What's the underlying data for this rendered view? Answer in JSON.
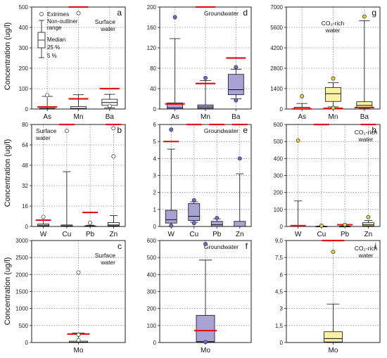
{
  "ylabel": "Concentration (ug/l)",
  "colors": {
    "surface": "#ffffff",
    "ground": "#a9a2d4",
    "co2": "#f8f1a6",
    "guideline": "#e0141c",
    "extreme_ground": "#6a6ad0",
    "extreme_co2": "#d9d247",
    "axis": "#222222",
    "grid": "#8a8a8a"
  },
  "legend": {
    "extremes": "Extrimes",
    "range_1": "Non-outliner",
    "range_2": "range",
    "median": "Median",
    "p25": "25 %",
    "p5": "5 %"
  },
  "chart_data": [
    {
      "id": "a",
      "type": "box",
      "letter": "a",
      "annotation": [
        "Surface",
        "water"
      ],
      "group": "surface",
      "ylim": [
        0,
        500
      ],
      "yticks": [
        0,
        100,
        200,
        300,
        400,
        500
      ],
      "tick_labels": [
        "0",
        "100",
        "200",
        "300",
        "400",
        "500"
      ],
      "categories": [
        "As",
        "Mn",
        "Ba"
      ],
      "boxes": [
        {
          "min": 0,
          "q1": 0.5,
          "median": 1.5,
          "q3": 3,
          "max": 62,
          "outliers": [
            68
          ],
          "guideline": 10
        },
        {
          "min": 0,
          "q1": 0,
          "median": 3,
          "q3": 12,
          "max": 70,
          "outliers": [
            470
          ],
          "guideline": 50,
          "guideline_top": 500
        },
        {
          "min": 5,
          "q1": 18,
          "median": 32,
          "q3": 48,
          "max": 72,
          "outliers": [
            15
          ],
          "guideline": 100
        }
      ]
    },
    {
      "id": "d",
      "type": "box",
      "letter": "d",
      "annotation": [
        "Groundwater"
      ],
      "group": "ground",
      "ylim": [
        0,
        200
      ],
      "yticks": [
        0,
        40,
        80,
        120,
        160,
        200
      ],
      "tick_labels": [
        "0",
        "40",
        "80",
        "120",
        "160",
        "200"
      ],
      "categories": [
        "As",
        "Mn",
        "Ba"
      ],
      "boxes": [
        {
          "min": 0,
          "q1": 0,
          "median": 2,
          "q3": 12,
          "max": 138,
          "outliers": [
            180
          ],
          "guideline": 10
        },
        {
          "min": 0,
          "q1": 1,
          "median": 4,
          "q3": 8,
          "max": 56,
          "outliers": [
            61
          ],
          "guideline": 50,
          "guideline_top": 200
        },
        {
          "min": 20,
          "q1": 28,
          "median": 38,
          "q3": 68,
          "max": 78,
          "outliers": [
            82,
            17
          ],
          "guideline": 100
        }
      ]
    },
    {
      "id": "g",
      "type": "box",
      "letter": "g",
      "annotation": [
        "CO₂-rich",
        "water"
      ],
      "group": "co2",
      "ylim": [
        0,
        7000
      ],
      "yticks": [
        0,
        1400,
        2800,
        4200,
        5600,
        7000
      ],
      "tick_labels": [
        "0",
        "1400",
        "2800",
        "4200",
        "5600",
        "7000"
      ],
      "categories": [
        "As",
        "Mn",
        "Ba"
      ],
      "boxes": [
        {
          "min": 0,
          "q1": 10,
          "median": 50,
          "q3": 120,
          "max": 380,
          "outliers": [
            880
          ],
          "guideline": 10
        },
        {
          "min": 150,
          "q1": 520,
          "median": 1050,
          "q3": 1480,
          "max": 1800,
          "outliers": [
            2100,
            80
          ],
          "guideline": 50
        },
        {
          "min": 20,
          "q1": 80,
          "median": 250,
          "q3": 500,
          "max": 6050,
          "outliers": [
            6350
          ],
          "guideline": 100
        }
      ]
    },
    {
      "id": "b",
      "type": "box",
      "letter": "b",
      "annotation": [
        "Surface",
        "water"
      ],
      "group": "surface",
      "ylim": [
        0,
        80
      ],
      "yticks": [
        0,
        16,
        32,
        48,
        64,
        80
      ],
      "tick_labels": [
        "0",
        "16",
        "32",
        "48",
        "64",
        "80"
      ],
      "categories": [
        "W",
        "Cu",
        "Pb",
        "Zn"
      ],
      "boxes": [
        {
          "min": 0,
          "q1": 0.3,
          "median": 1,
          "q3": 2,
          "max": 5,
          "outliers": [
            7.5
          ],
          "guideline": 5
        },
        {
          "min": 0,
          "q1": 0.2,
          "median": 0.5,
          "q3": 1.2,
          "max": 43,
          "outliers": [
            75
          ],
          "guideline": 2000,
          "guideline_top": 80
        },
        {
          "min": 0,
          "q1": 0,
          "median": 0.2,
          "q3": 0.5,
          "max": 1,
          "outliers": [
            3
          ],
          "guideline": 11
        },
        {
          "min": 0,
          "q1": 0.5,
          "median": 1.2,
          "q3": 3,
          "max": 8.5,
          "outliers": [
            77,
            55
          ],
          "guideline": 3000,
          "guideline_top": 80
        }
      ]
    },
    {
      "id": "e",
      "type": "box",
      "letter": "e",
      "annotation": [
        "Groundwater"
      ],
      "group": "ground",
      "ylim": [
        0,
        6
      ],
      "yticks": [
        0,
        1,
        2,
        3,
        4,
        5,
        6
      ],
      "tick_labels": [
        "0",
        "1",
        "2",
        "3",
        "4",
        "5",
        "6"
      ],
      "categories": [
        "W",
        "Cu",
        "Pb",
        "Zn"
      ],
      "boxes": [
        {
          "min": 0,
          "q1": 0.2,
          "median": 0.4,
          "q3": 0.95,
          "max": 4.55,
          "outliers": [
            5.7,
            0.05
          ],
          "guideline": 5
        },
        {
          "min": 0.25,
          "q1": 0.35,
          "median": 0.6,
          "q3": 1.35,
          "max": 1.45,
          "outliers": [
            1.55,
            0.2
          ],
          "guideline": 2000,
          "guideline_top": 6
        },
        {
          "min": 0,
          "q1": 0,
          "median": 0.1,
          "q3": 0.3,
          "max": 0.45,
          "outliers": [
            0.5
          ],
          "guideline": 10,
          "guideline_top": 6
        },
        {
          "min": 0,
          "q1": 0,
          "median": 0,
          "q3": 0.3,
          "max": 3.1,
          "outliers": [
            4
          ],
          "guideline": 3000,
          "guideline_top": 6
        }
      ]
    },
    {
      "id": "h",
      "type": "box",
      "letter": "h",
      "annotation": [
        "CO₂-rich",
        "water"
      ],
      "group": "co2",
      "ylim": [
        0,
        600
      ],
      "yticks": [
        0,
        100,
        200,
        300,
        400,
        500,
        600
      ],
      "tick_labels": [
        "0",
        "100",
        "200",
        "300",
        "400",
        "500",
        "600"
      ],
      "categories": [
        "W",
        "Cu",
        "Pb",
        "Zn"
      ],
      "boxes": [
        {
          "min": 0,
          "q1": 0,
          "median": 1,
          "q3": 3,
          "max": 150,
          "outliers": [
            505
          ],
          "guideline": 5
        },
        {
          "min": 0,
          "q1": 0,
          "median": 0.5,
          "q3": 1,
          "max": 3,
          "outliers": [
            5
          ],
          "guideline": 2000,
          "guideline_top": 600
        },
        {
          "min": 0,
          "q1": 0,
          "median": 0.5,
          "q3": 1,
          "max": 3,
          "outliers": [
            10
          ],
          "guideline": 10
        },
        {
          "min": 0,
          "q1": 3,
          "median": 10,
          "q3": 22,
          "max": 35,
          "outliers": [
            55
          ],
          "guideline": 3000,
          "guideline_top": 600
        }
      ]
    },
    {
      "id": "c",
      "type": "box",
      "letter": "c",
      "annotation": [
        "Surface",
        "water"
      ],
      "group": "surface",
      "ylim": [
        0,
        3000
      ],
      "yticks": [
        0,
        500,
        1000,
        1500,
        2000,
        2500,
        3000
      ],
      "tick_labels": [
        "0",
        "500",
        "1000",
        "1500",
        "2000",
        "2500",
        "3000"
      ],
      "categories": [
        "Mo"
      ],
      "boxes": [
        {
          "min": 0,
          "q1": 2,
          "median": 10,
          "q3": 40,
          "max": 280,
          "outliers": [
            2060,
            230,
            70
          ],
          "guideline": 250
        }
      ]
    },
    {
      "id": "f",
      "type": "box",
      "letter": "f",
      "annotation": [
        "Groundwater"
      ],
      "group": "ground",
      "ylim": [
        0,
        600
      ],
      "yticks": [
        0,
        100,
        200,
        300,
        400,
        500,
        600
      ],
      "tick_labels": [
        "0",
        "100",
        "200",
        "300",
        "400",
        "500",
        "600"
      ],
      "categories": [
        "Mo"
      ],
      "boxes": [
        {
          "min": 0,
          "q1": 2,
          "median": 5,
          "q3": 160,
          "max": 485,
          "outliers": [
            580,
            3
          ],
          "guideline": 70
        }
      ]
    },
    {
      "id": "i",
      "type": "box",
      "letter": "i",
      "annotation": [
        "CO₂-rich",
        "water"
      ],
      "group": "co2",
      "ylim": [
        0,
        9
      ],
      "yticks": [
        0,
        1.5,
        3,
        4.5,
        6,
        7.5,
        9
      ],
      "tick_labels": [
        "0",
        "1,5",
        "3",
        "4,5",
        "6",
        "7,5",
        "9,0"
      ],
      "categories": [
        "Mo"
      ],
      "boxes": [
        {
          "min": 0,
          "q1": 0.05,
          "median": 0.35,
          "q3": 0.95,
          "max": 3.4,
          "outliers": [
            8
          ],
          "guideline": 70,
          "guideline_top": 9
        }
      ]
    }
  ]
}
